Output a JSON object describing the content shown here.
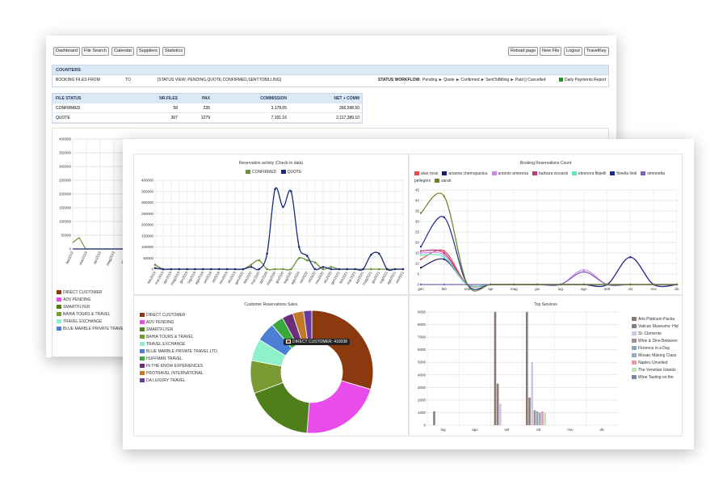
{
  "back": {
    "nav_left": [
      "Dashboard",
      "File Search",
      "Calendar",
      "Suppliers",
      "Statistics"
    ],
    "nav_right": [
      "Reload page",
      "New File",
      "Logout",
      "TravelKey"
    ],
    "counters": {
      "title": "COUNTERS",
      "from_label": "BOOKING FILES FROM",
      "to_label": "TO",
      "status_view": "[STATUS VIEW: PENDING,QUOTE,CONFIRMED,SENTTOBILLING]",
      "workflow_label": "STATUS WORKFLOW:",
      "workflow": "Pending ► Quote ► Confirmed ► SentToBilling ► Paid || Cancelled",
      "report_link": "Daily Payments Report"
    },
    "status_table": {
      "headers": [
        "FILE STATUS",
        "NR.FILES",
        "PAX",
        "COMMISSION",
        "NET + COMM"
      ],
      "rows": [
        [
          "CONFIRMED",
          "58",
          "235",
          "3,178.05",
          "266,598.50"
        ],
        [
          "QUOTE",
          "307",
          "1279",
          "7,191.16",
          "2,117,389.10"
        ]
      ]
    },
    "y_ticks": [
      "400000",
      "350000",
      "300000",
      "250000",
      "200000",
      "150000",
      "100000",
      "50000",
      "0"
    ],
    "x_ticks": [
      "feb2019",
      "mar2019",
      "apr2019",
      "mag2019",
      "giu2019"
    ],
    "legend": [
      {
        "label": "DIRECT CUSTOMER",
        "color": "#8b3a0f"
      },
      {
        "label": "ADV PENDING",
        "color": "#e94de9"
      },
      {
        "label": "SMARTFLYER",
        "color": "#4f7f1a"
      },
      {
        "label": "BAHIA TOURS & TRAVEL",
        "color": "#7a9a34"
      },
      {
        "label": "TRAVEL EXCHANGE",
        "color": "#8ff1c9"
      },
      {
        "label": "BLUE MARBLE PRIVATE TRAVEL",
        "color": "#4a7fd4"
      }
    ]
  },
  "front": {
    "reservation_activity": {
      "title": "Reservation activity (Check-In data)",
      "legend": [
        {
          "label": "CONFIRMED",
          "color": "#6f8f3a"
        },
        {
          "label": "QUOTE",
          "color": "#1a2a7a"
        }
      ]
    },
    "booking_count": {
      "title": "Booking Reservations Count",
      "legend": [
        {
          "label": "alan rossi",
          "color": "#e74c4c"
        },
        {
          "label": "arianna chemopaolou",
          "color": "#1a1a6a"
        },
        {
          "label": "antonio amorena",
          "color": "#cc88e8"
        },
        {
          "label": "barbara ricciardi",
          "color": "#c0397a"
        },
        {
          "label": "eleonora filipelli",
          "color": "#5fe8c0"
        },
        {
          "label": "fiorella liroli",
          "color": "#1d2b8a"
        },
        {
          "label": "simonetta pellegrini",
          "color": "#7d60b8"
        },
        {
          "label": "sarah",
          "color": "#6a7f2a"
        }
      ]
    },
    "customer_sales": {
      "title": "Customer Reservations Sales",
      "tooltip": "DIRECT CUSTOMER: 410038",
      "legend": [
        {
          "label": "DIRECT CUSTOMER",
          "color": "#8b3a0f"
        },
        {
          "label": "ADV PENDING",
          "color": "#e94de9"
        },
        {
          "label": "SMARTFLYER",
          "color": "#4f7f1a"
        },
        {
          "label": "BAHIA TOURS & TRAVEL",
          "color": "#7a9a34"
        },
        {
          "label": "TRAVEL EXCHANGE",
          "color": "#8ff1c9"
        },
        {
          "label": "BLUE MARBLE PRIVATE TRAVEL LTD.",
          "color": "#4a7fd4"
        },
        {
          "label": "HUFFMAN TRAVEL",
          "color": "#3aa83a"
        },
        {
          "label": "IN THE KNOW EXPERIENCES",
          "color": "#6b2f7a"
        },
        {
          "label": "PROTRAVEL INTERNATIONAL",
          "color": "#c07a28"
        },
        {
          "label": "DA LUXURY TRAVEL",
          "color": "#6a3aa0"
        }
      ]
    },
    "top_services": {
      "title": "Top Services",
      "legend": [
        {
          "label": "Arts Platinum Packa",
          "color": "#8b7a70"
        },
        {
          "label": "Vatican Museums: Hid",
          "color": "#8a7f78"
        },
        {
          "label": "St. Clemente",
          "color": "#c8c8e8"
        },
        {
          "label": "Wine & Dine Between",
          "color": "#a89090"
        },
        {
          "label": "Florence in a Day",
          "color": "#8aa8b8"
        },
        {
          "label": "Mosaic Making Class",
          "color": "#9aa8c8"
        },
        {
          "label": "Naples Unveiled",
          "color": "#e89aa8"
        },
        {
          "label": "The Venetian Islands",
          "color": "#b8e8b0"
        },
        {
          "label": "Wine Tasting on the",
          "color": "#7a8aa0"
        }
      ]
    }
  },
  "chart_data": [
    {
      "type": "line",
      "title": "Reservation activity (Check-In data)",
      "x": [
        "feb2019",
        "mar2019",
        "apr2019",
        "mag2019",
        "giu2019",
        "lug2019",
        "ago2019",
        "set2019",
        "ott2019",
        "nov2019",
        "dic2019",
        "gen2020",
        "feb2020",
        "mar2020",
        "apr2020",
        "mag2020",
        "giu2020",
        "lug2020",
        "ago2020",
        "set2020",
        "ott2020",
        "nov2020",
        "dic2020",
        "gen2021",
        "feb2021",
        "mar2021",
        "apr2021",
        "mag2021",
        "giu2021",
        "lug2021",
        "ago2021",
        "set2021"
      ],
      "ylim": [
        0,
        400000
      ],
      "y_ticks": [
        0,
        50000,
        100000,
        150000,
        200000,
        250000,
        300000,
        350000,
        400000
      ],
      "series": [
        {
          "name": "CONFIRMED",
          "values": [
            20000,
            0,
            0,
            0,
            0,
            0,
            0,
            0,
            0,
            0,
            0,
            0,
            20000,
            40000,
            0,
            0,
            0,
            0,
            50000,
            40000,
            30000,
            0,
            10000,
            0,
            0,
            0,
            0,
            0,
            0,
            0,
            0,
            0
          ]
        },
        {
          "name": "QUOTE",
          "values": [
            5000,
            0,
            0,
            0,
            0,
            0,
            0,
            0,
            0,
            0,
            0,
            0,
            10000,
            0,
            70000,
            360000,
            280000,
            350000,
            100000,
            60000,
            0,
            10000,
            0,
            0,
            0,
            0,
            0,
            65000,
            70000,
            0,
            0,
            0
          ]
        }
      ]
    },
    {
      "type": "line",
      "title": "Booking Reservations Count",
      "x": [
        "gen",
        "feb",
        "mar",
        "apr",
        "mag",
        "giu",
        "lug",
        "ago",
        "sett",
        "ott",
        "nov",
        "dic"
      ],
      "ylim": [
        0,
        45
      ],
      "y_ticks": [
        0,
        5,
        10,
        15,
        20,
        25,
        30,
        35,
        40,
        45
      ],
      "series": [
        {
          "name": "alan rossi",
          "values": [
            12,
            16,
            0,
            0,
            0,
            0,
            0,
            0,
            0,
            0,
            0,
            0
          ]
        },
        {
          "name": "arianna chemopaolou",
          "values": [
            8,
            12,
            0,
            0,
            0,
            0,
            0,
            0,
            0,
            0,
            0,
            0
          ]
        },
        {
          "name": "antonio amorena",
          "values": [
            15,
            14,
            0,
            0,
            0,
            0,
            0,
            7,
            0,
            0,
            0,
            0
          ]
        },
        {
          "name": "barbara ricciardi",
          "values": [
            16,
            15,
            0,
            0,
            0,
            0,
            0,
            0,
            0,
            13,
            0,
            0
          ]
        },
        {
          "name": "eleonora filipelli",
          "values": [
            14,
            13,
            0,
            0,
            0,
            0,
            0,
            0,
            0,
            0,
            0,
            0
          ]
        },
        {
          "name": "fiorella liroli",
          "values": [
            18,
            32,
            0,
            0,
            0,
            0,
            0,
            0,
            0,
            13,
            0,
            0
          ]
        },
        {
          "name": "simonetta pellegrini",
          "values": [
            0,
            0,
            0,
            0,
            0,
            0,
            0,
            6,
            0,
            0,
            0,
            0
          ]
        },
        {
          "name": "sarah",
          "values": [
            34,
            42,
            0,
            0,
            0,
            0,
            0,
            0,
            0,
            0,
            0,
            0
          ]
        }
      ]
    },
    {
      "type": "pie",
      "title": "Customer Reservations Sales",
      "categories": [
        "DIRECT CUSTOMER",
        "ADV PENDING",
        "SMARTFLYER",
        "BAHIA TOURS & TRAVEL",
        "TRAVEL EXCHANGE",
        "BLUE MARBLE PRIVATE TRAVEL LTD.",
        "HUFFMAN TRAVEL",
        "IN THE KNOW EXPERIENCES",
        "PROTRAVEL INTERNATIONAL",
        "DA LUXURY TRAVEL"
      ],
      "values": [
        410038,
        300000,
        250000,
        120000,
        80000,
        70000,
        45000,
        40000,
        40000,
        30000
      ]
    },
    {
      "type": "bar",
      "title": "Top Services",
      "categories": [
        "lug",
        "ago",
        "set",
        "ott",
        "nov",
        "dic"
      ],
      "ylim": [
        0,
        9000
      ],
      "y_ticks": [
        0,
        1000,
        2000,
        3000,
        4000,
        5000,
        6000,
        7000,
        8000,
        9000
      ],
      "series": [
        {
          "name": "Arts Platinum Packa",
          "values": [
            0,
            0,
            9000,
            9000,
            0,
            0
          ]
        },
        {
          "name": "Vatican Museums: Hid",
          "values": [
            1100,
            0,
            3300,
            2200,
            0,
            0
          ]
        },
        {
          "name": "St. Clemente",
          "values": [
            0,
            0,
            1700,
            5000,
            0,
            0
          ]
        },
        {
          "name": "Wine & Dine Between",
          "values": [
            0,
            0,
            0,
            1200,
            0,
            0
          ]
        },
        {
          "name": "Florence in a Day",
          "values": [
            0,
            0,
            0,
            1100,
            0,
            0
          ]
        },
        {
          "name": "Mosaic Making Class",
          "values": [
            0,
            0,
            0,
            1000,
            0,
            0
          ]
        },
        {
          "name": "Naples Unveiled",
          "values": [
            0,
            0,
            0,
            1100,
            0,
            0
          ]
        },
        {
          "name": "The Venetian Islands",
          "values": [
            0,
            0,
            0,
            1000,
            0,
            0
          ]
        },
        {
          "name": "Wine Tasting on the",
          "values": [
            0,
            0,
            0,
            0,
            0,
            0
          ]
        }
      ]
    }
  ]
}
